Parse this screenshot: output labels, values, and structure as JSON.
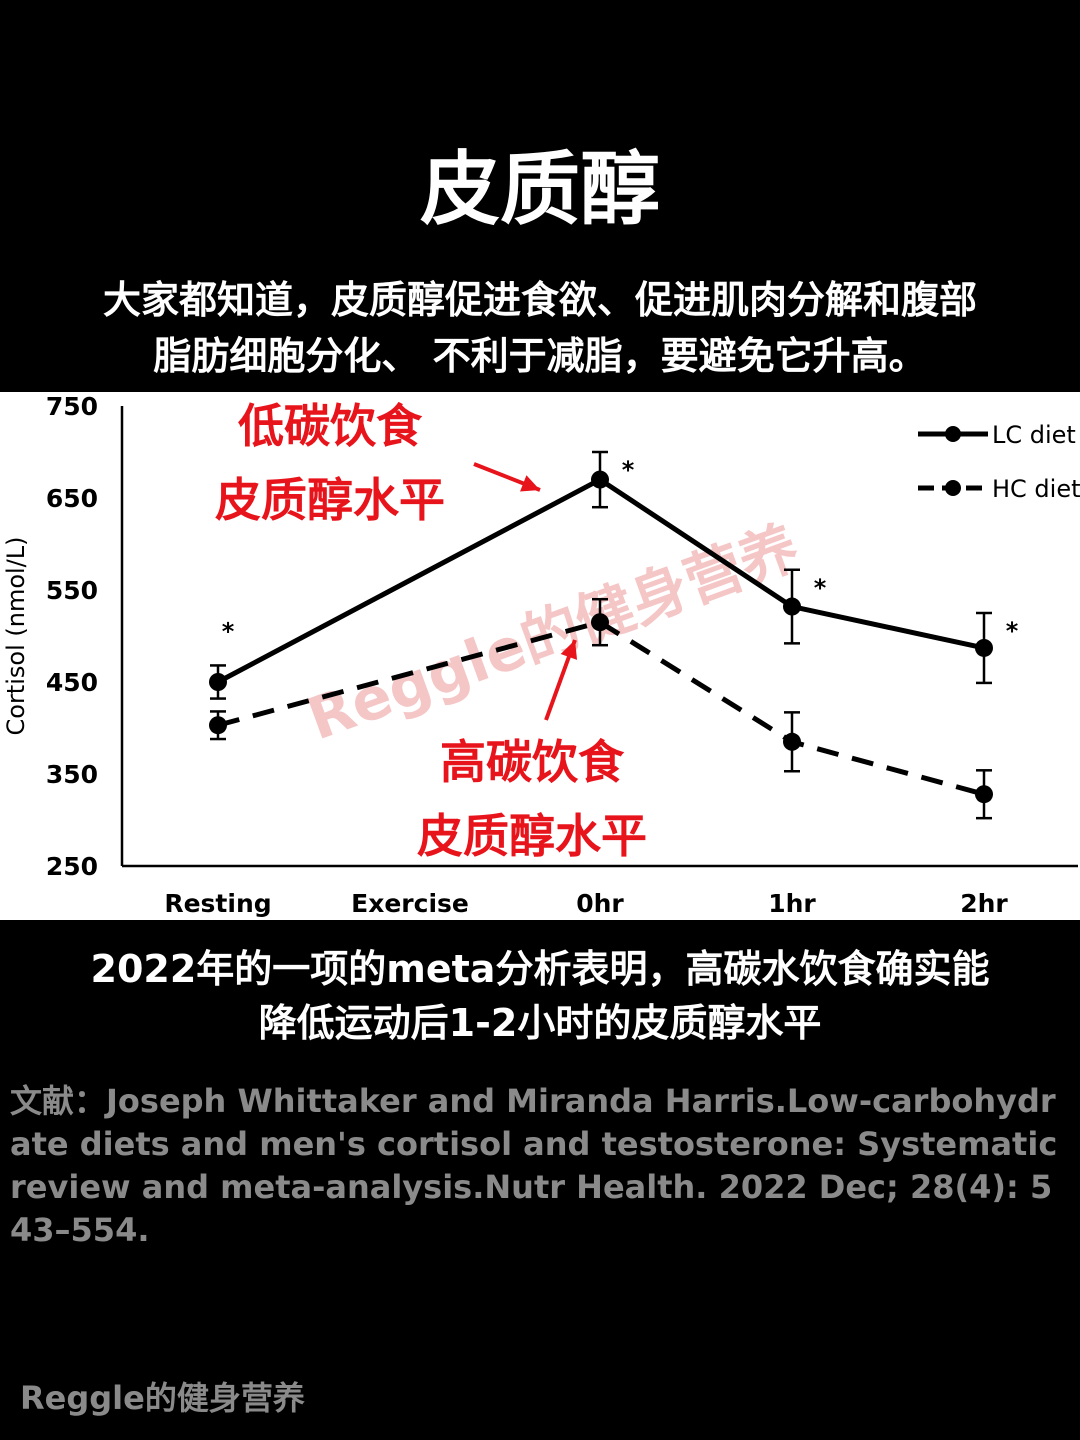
{
  "page": {
    "title": "皮质醇",
    "intro_line1": "大家都知道，皮质醇促进食欲、促进肌肉分解和腹部",
    "intro_line2": "脂肪细胞分化、 不利于减脂，要避免它升高。",
    "summary_line1": "2022年的一项的meta分析表明，高碳水饮食确实能",
    "summary_line2": "降低运动后1-2小时的皮质醇水平",
    "reference": "文献：Joseph Whittaker and Miranda Harris.Low-carbohydrate diets and men's cortisol and testosterone: Systematic review and meta-analysis.Nutr Health. 2022 Dec; 28(4): 543–554.",
    "footer": "Reggle的健身营养"
  },
  "chart_data": {
    "type": "line",
    "categories": [
      "Resting",
      "Exercise",
      "0hr",
      "1hr",
      "2hr"
    ],
    "ylabel": "Cortisol (nmol/L)",
    "ylim": [
      250,
      750
    ],
    "yticks": [
      "250",
      "350",
      "450",
      "550",
      "650",
      "750"
    ],
    "grid": false,
    "legend_position": "top-right",
    "series": [
      {
        "name": "LC diet",
        "style": "solid",
        "values": [
          450,
          null,
          670,
          532,
          487
        ],
        "error": [
          18,
          null,
          30,
          40,
          38
        ],
        "significance": [
          "*",
          null,
          "*",
          "*",
          "*"
        ]
      },
      {
        "name": "HC diet",
        "style": "dashed",
        "values": [
          403,
          null,
          515,
          385,
          328
        ],
        "error": [
          15,
          null,
          25,
          32,
          26
        ],
        "significance": [
          null,
          null,
          null,
          null,
          null
        ]
      }
    ],
    "annotations": [
      {
        "line1": "低碳饮食",
        "line2": "皮质醇水平",
        "target_series": "LC diet",
        "target_category": "0hr"
      },
      {
        "line1": "高碳饮食",
        "line2": "皮质醇水平",
        "target_series": "HC diet",
        "target_category": "0hr"
      }
    ],
    "watermark": "Reggle的健身营养",
    "colors": {
      "line": "#000000",
      "annotation": "#e8141b",
      "watermark": "#f2b3b3"
    }
  }
}
